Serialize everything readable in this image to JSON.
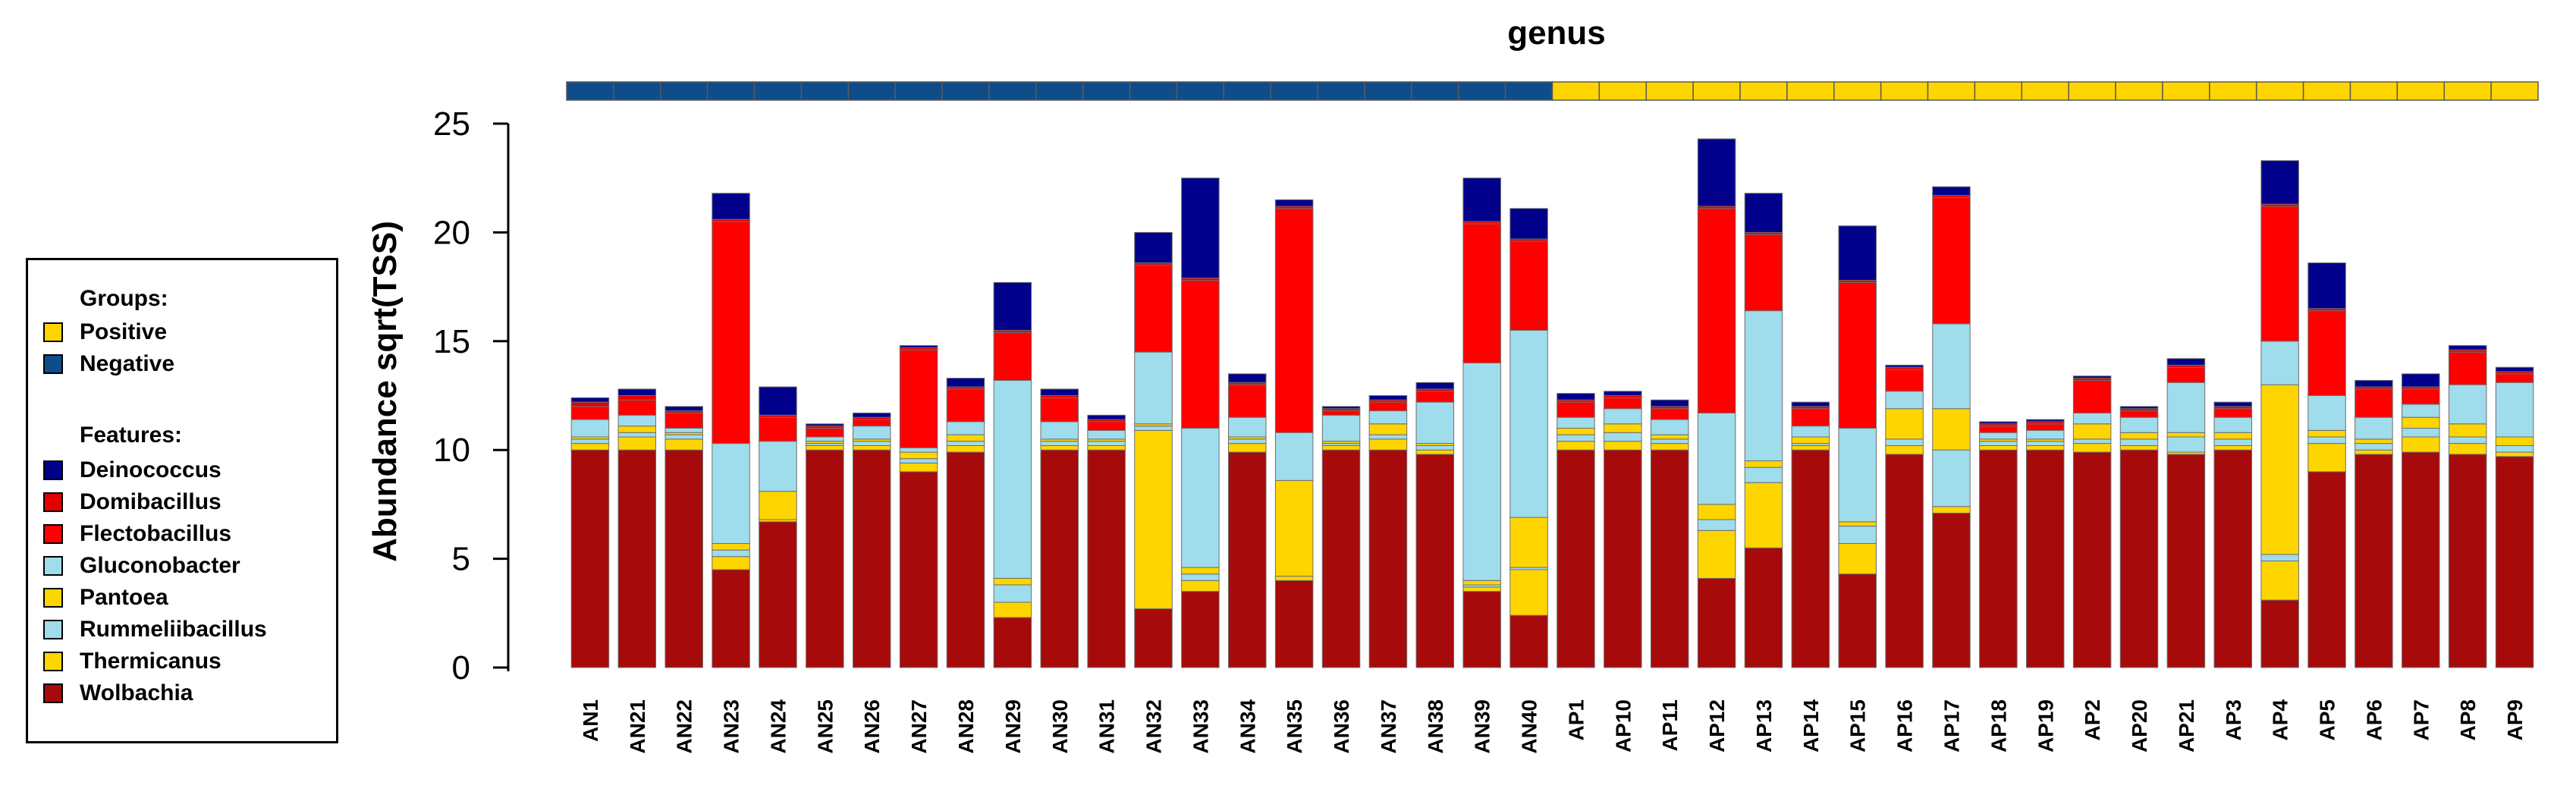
{
  "chart_data": {
    "type": "bar",
    "stacked": true,
    "title": "genus",
    "xlabel": "",
    "ylabel": "Abundance sqrt(TSS)",
    "ylim": [
      0,
      25
    ],
    "yticks": [
      0,
      5,
      10,
      15,
      20,
      25
    ],
    "categories": [
      "AN1",
      "AN21",
      "AN22",
      "AN23",
      "AN24",
      "AN25",
      "AN26",
      "AN27",
      "AN28",
      "AN29",
      "AN30",
      "AN31",
      "AN32",
      "AN33",
      "AN34",
      "AN35",
      "AN36",
      "AN37",
      "AN38",
      "AN39",
      "AN40",
      "AP1",
      "AP10",
      "AP11",
      "AP12",
      "AP13",
      "AP14",
      "AP15",
      "AP16",
      "AP17",
      "AP18",
      "AP19",
      "AP2",
      "AP20",
      "AP21",
      "AP3",
      "AP4",
      "AP5",
      "AP6",
      "AP7",
      "AP8",
      "AP9"
    ],
    "group_bar": [
      "Negative",
      "Negative",
      "Negative",
      "Negative",
      "Negative",
      "Negative",
      "Negative",
      "Negative",
      "Negative",
      "Negative",
      "Negative",
      "Negative",
      "Negative",
      "Negative",
      "Negative",
      "Negative",
      "Negative",
      "Negative",
      "Negative",
      "Negative",
      "Negative",
      "Positive",
      "Positive",
      "Positive",
      "Positive",
      "Positive",
      "Positive",
      "Positive",
      "Positive",
      "Positive",
      "Positive",
      "Positive",
      "Positive",
      "Positive",
      "Positive",
      "Positive",
      "Positive",
      "Positive",
      "Positive",
      "Positive",
      "Positive",
      "Positive"
    ],
    "series": [
      {
        "name": "Wolbachia",
        "color": "#a60a0a",
        "values": [
          10.0,
          10.0,
          10.0,
          4.5,
          6.7,
          10.0,
          10.0,
          9.0,
          9.9,
          2.3,
          10.0,
          10.0,
          2.7,
          3.5,
          9.9,
          4.0,
          10.0,
          10.0,
          9.8,
          3.5,
          2.4,
          10.0,
          10.0,
          10.0,
          4.1,
          5.5,
          10.0,
          4.3,
          9.8,
          7.1,
          10.0,
          10.0,
          9.9,
          10.0,
          9.8,
          10.0,
          3.1,
          9.0,
          9.8,
          9.9,
          9.8,
          9.7
        ]
      },
      {
        "name": "Thermicanus",
        "color": "#ffd500",
        "values": [
          0.3,
          0.6,
          0.5,
          0.6,
          0.1,
          0.2,
          0.2,
          0.4,
          0.3,
          0.7,
          0.2,
          0.2,
          8.2,
          0.5,
          0.4,
          0.2,
          0.2,
          0.5,
          0.2,
          0.2,
          2.1,
          0.4,
          0.4,
          0.3,
          2.2,
          3.0,
          0.2,
          1.4,
          0.4,
          0.3,
          0.2,
          0.2,
          0.4,
          0.2,
          0.1,
          0.2,
          1.8,
          1.3,
          0.2,
          0.7,
          0.5,
          0.2
        ]
      },
      {
        "name": "Rummeliibacillus",
        "color": "#9fdcec",
        "values": [
          0.2,
          0.2,
          0.2,
          0.3,
          0.0,
          0.1,
          0.2,
          0.2,
          0.2,
          0.8,
          0.2,
          0.2,
          0.2,
          0.3,
          0.2,
          0.0,
          0.1,
          0.2,
          0.2,
          0.1,
          0.1,
          0.3,
          0.4,
          0.2,
          0.5,
          0.7,
          0.1,
          0.8,
          0.3,
          2.6,
          0.2,
          0.2,
          0.2,
          0.3,
          0.7,
          0.3,
          0.3,
          0.3,
          0.3,
          0.4,
          0.3,
          0.3
        ]
      },
      {
        "name": "Pantoea",
        "color": "#ffd500",
        "values": [
          0.1,
          0.3,
          0.1,
          0.3,
          1.3,
          0.1,
          0.1,
          0.3,
          0.3,
          0.3,
          0.1,
          0.1,
          0.1,
          0.3,
          0.1,
          4.4,
          0.1,
          0.5,
          0.1,
          0.2,
          2.3,
          0.3,
          0.4,
          0.2,
          0.7,
          0.3,
          0.3,
          0.2,
          1.4,
          1.9,
          0.1,
          0.1,
          0.7,
          0.3,
          0.2,
          0.3,
          7.8,
          0.3,
          0.2,
          0.5,
          0.6,
          0.4
        ]
      },
      {
        "name": "Gluconobacter",
        "color": "#9fdcec",
        "values": [
          0.8,
          0.5,
          0.2,
          4.6,
          2.3,
          0.2,
          0.6,
          0.2,
          0.6,
          9.1,
          0.8,
          0.4,
          3.3,
          6.4,
          0.9,
          2.2,
          1.2,
          0.6,
          1.9,
          10.0,
          8.6,
          0.5,
          0.7,
          0.7,
          4.2,
          6.9,
          0.5,
          4.3,
          0.8,
          3.9,
          0.3,
          0.4,
          0.5,
          0.7,
          2.3,
          0.7,
          2.0,
          1.6,
          1.0,
          0.6,
          1.8,
          2.5
        ]
      },
      {
        "name": "Flectobacillus",
        "color": "#ff0000",
        "values": [
          0.6,
          0.7,
          0.7,
          10.2,
          1.1,
          0.4,
          0.3,
          4.5,
          1.5,
          2.2,
          1.1,
          0.4,
          4.0,
          6.8,
          1.5,
          10.3,
          0.2,
          0.4,
          0.5,
          6.4,
          4.1,
          0.7,
          0.5,
          0.5,
          9.4,
          3.5,
          0.8,
          6.7,
          1.0,
          5.8,
          0.3,
          0.3,
          1.5,
          0.3,
          0.7,
          0.4,
          6.2,
          3.9,
          1.3,
          0.7,
          1.5,
          0.4
        ]
      },
      {
        "name": "Domibacillus",
        "color": "#e30000",
        "values": [
          0.2,
          0.2,
          0.1,
          0.1,
          0.1,
          0.1,
          0.1,
          0.1,
          0.1,
          0.1,
          0.1,
          0.1,
          0.1,
          0.1,
          0.1,
          0.1,
          0.1,
          0.1,
          0.1,
          0.1,
          0.1,
          0.1,
          0.1,
          0.1,
          0.1,
          0.1,
          0.1,
          0.1,
          0.1,
          0.1,
          0.1,
          0.1,
          0.1,
          0.1,
          0.1,
          0.1,
          0.1,
          0.1,
          0.1,
          0.1,
          0.1,
          0.1
        ]
      },
      {
        "name": "Deinococcus",
        "color": "#00008b",
        "values": [
          0.2,
          0.3,
          0.2,
          1.2,
          1.3,
          0.1,
          0.2,
          0.1,
          0.4,
          2.2,
          0.3,
          0.2,
          1.4,
          4.6,
          0.4,
          0.3,
          0.1,
          0.2,
          0.3,
          2.0,
          1.4,
          0.3,
          0.2,
          0.3,
          3.1,
          1.8,
          0.2,
          2.5,
          0.1,
          0.4,
          0.1,
          0.1,
          0.1,
          0.1,
          0.3,
          0.2,
          2.0,
          2.1,
          0.3,
          0.6,
          0.2,
          0.2
        ]
      }
    ],
    "groups_legend": [
      {
        "name": "Positive",
        "color": "#ffd500"
      },
      {
        "name": "Negative",
        "color": "#0f4c8a"
      }
    ]
  },
  "legend": {
    "groups_heading": "Groups:",
    "features_heading": "Features:",
    "groups": [
      "Positive",
      "Negative"
    ],
    "features": [
      "Deinococcus",
      "Domibacillus",
      "Flectobacillus",
      "Gluconobacter",
      "Pantoea",
      "Rummeliibacillus",
      "Thermicanus",
      "Wolbachia"
    ],
    "feature_colors": [
      "#00008b",
      "#e30000",
      "#ff0000",
      "#9fdcec",
      "#ffd500",
      "#9fdcec",
      "#ffd500",
      "#a60a0a"
    ],
    "group_colors": [
      "#ffd500",
      "#0f4c8a"
    ]
  }
}
